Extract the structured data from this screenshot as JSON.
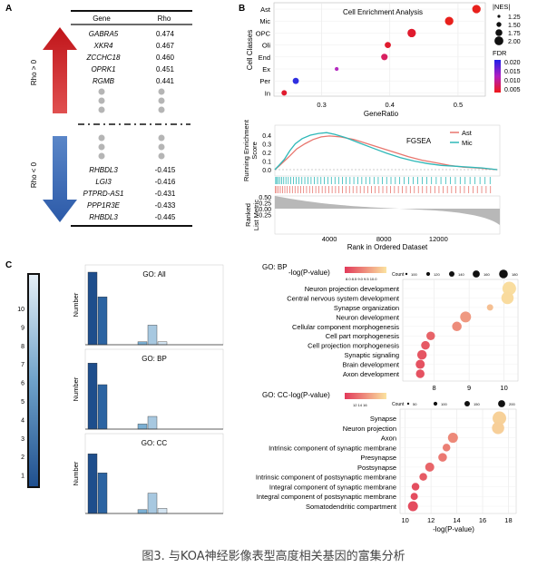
{
  "caption": "图3. 与KOA神经影像表型高度相关基因的富集分析",
  "panelA": {
    "label": "A",
    "headers": [
      "Gene",
      "Rho"
    ],
    "positive": [
      {
        "gene": "GABRA5",
        "rho": "0.474"
      },
      {
        "gene": "XKR4",
        "rho": "0.467"
      },
      {
        "gene": "ZCCHC18",
        "rho": "0.460"
      },
      {
        "gene": "OPRK1",
        "rho": "0.451"
      },
      {
        "gene": "RGMB",
        "rho": "0.441"
      }
    ],
    "negative": [
      {
        "gene": "RHBDL3",
        "rho": "-0.415"
      },
      {
        "gene": "LGI3",
        "rho": "-0.416"
      },
      {
        "gene": "PTPRD-AS1",
        "rho": "-0.431"
      },
      {
        "gene": "PPP1R3E",
        "rho": "-0.433"
      },
      {
        "gene": "RHBDL3",
        "rho": "-0.445"
      }
    ],
    "rho_pos_label": "Rho > 0",
    "rho_neg_label": "Rho < 0",
    "colors": {
      "up": "#d42a2a",
      "down": "#3a68b4"
    }
  },
  "panelB": {
    "label": "B",
    "dot": {
      "title": "Cell Enrichment Analysis",
      "ylabel": "Cell Classes",
      "xlabel": "GeneRatio",
      "xticks": [
        "0.3",
        "0.4",
        "0.5"
      ],
      "classes": [
        "Ast",
        "Mic",
        "OPC",
        "Oli",
        "End",
        "Ex",
        "Per",
        "In"
      ],
      "legend_nes_title": "|NES|",
      "legend_nes": [
        "1.25",
        "1.50",
        "1.75",
        "2.00"
      ],
      "legend_fdr_title": "FDR",
      "legend_fdr": [
        "0.020",
        "0.015",
        "0.010",
        "0.005"
      ]
    },
    "chart_data": {
      "type": "scatter",
      "title": "Cell Enrichment Analysis",
      "xlabel": "GeneRatio",
      "ylabel": "Cell Classes",
      "xlim": [
        0.23,
        0.54
      ],
      "points": [
        {
          "cls": "Ast",
          "x": 0.527,
          "nes": 1.85,
          "color": "#e8201c"
        },
        {
          "cls": "Mic",
          "x": 0.487,
          "nes": 1.85,
          "color": "#e8201c"
        },
        {
          "cls": "OPC",
          "x": 0.432,
          "nes": 1.85,
          "color": "#e01b2e"
        },
        {
          "cls": "Oli",
          "x": 0.397,
          "nes": 1.55,
          "color": "#e01b2e"
        },
        {
          "cls": "End",
          "x": 0.392,
          "nes": 1.6,
          "color": "#d82060"
        },
        {
          "cls": "Ex",
          "x": 0.322,
          "nes": 1.25,
          "color": "#b52bc0"
        },
        {
          "cls": "Per",
          "x": 0.262,
          "nes": 1.55,
          "color": "#2f2fe0"
        },
        {
          "cls": "In",
          "x": 0.245,
          "nes": 1.45,
          "color": "#e01b2e"
        }
      ]
    },
    "gsea": {
      "title": "FGSEA",
      "ylabel1": "Running Enrichment",
      "ylabel2": "Score",
      "yticks": [
        "0.4",
        "0.3",
        "0.2",
        "0.1",
        "0.0"
      ],
      "legend": [
        "Ast",
        "Mic"
      ],
      "colors": {
        "Ast": "#e8766e",
        "Mic": "#2eb8b8"
      },
      "metric_ylabel1": "Ranked",
      "metric_ylabel2": "List Metric",
      "metric_yticks": [
        "0.50",
        "0.25",
        "0.00",
        "-0.25"
      ],
      "xticks": [
        "4000",
        "8000",
        "12000"
      ],
      "xlabel": "Rank in Ordered Dataset"
    }
  },
  "panelC": {
    "label": "C",
    "colorbar_ticks": [
      "10",
      "9",
      "8",
      "7",
      "6",
      "5",
      "4",
      "3",
      "2",
      "1"
    ],
    "bars": [
      {
        "title": "GO: All",
        "ylabel": "Number",
        "values": [
          100,
          66,
          0,
          0,
          0,
          4,
          27,
          4
        ]
      },
      {
        "title": "GO: BP",
        "ylabel": "Number",
        "values": [
          52,
          35,
          0,
          0,
          0,
          4,
          10,
          0
        ]
      },
      {
        "title": "GO: CC",
        "ylabel": "Number",
        "values": [
          47,
          32,
          0,
          0,
          0,
          3,
          16,
          4
        ]
      }
    ],
    "bar_colors": [
      "#1e4e8c",
      "#2c64a2",
      "#3b7ab6",
      "#4b8cc0",
      "#5f9ec9",
      "#7aafd3",
      "#a7c8e0",
      "#d3e4f1"
    ],
    "bp": {
      "header": "GO: BP",
      "legend_title": "-log(P-value)",
      "legend_ticks": "8.0 8.5 9.0 9.5 10.0",
      "count_label": "Count",
      "count_ticks": [
        "100",
        "120",
        "140",
        "160",
        "180"
      ],
      "xticks": [
        "8",
        "9",
        "10"
      ],
      "terms": [
        {
          "term": "Neuron projection development",
          "x": 10.15,
          "size": 1.0
        },
        {
          "term": "Central nervous system development",
          "x": 10.1,
          "size": 0.85
        },
        {
          "term": "Synapse organization",
          "x": 9.6,
          "size": 0.2
        },
        {
          "term": "Neuron development",
          "x": 8.9,
          "size": 0.7
        },
        {
          "term": "Cellular component morphogenesis",
          "x": 8.65,
          "size": 0.55
        },
        {
          "term": "Cell part morphogenesis",
          "x": 7.9,
          "size": 0.45
        },
        {
          "term": "Cell projection morphogenesis",
          "x": 7.75,
          "size": 0.45
        },
        {
          "term": "Synaptic signaling",
          "x": 7.65,
          "size": 0.55
        },
        {
          "term": "Brain development",
          "x": 7.6,
          "size": 0.5
        },
        {
          "term": "Axon development",
          "x": 7.6,
          "size": 0.45
        }
      ]
    },
    "cc": {
      "header": "GO: CC",
      "legend_title": "-log(P-value)",
      "legend_ticks": "12 14 16",
      "count_label": "Count",
      "count_ticks": [
        "50",
        "100",
        "150",
        "200"
      ],
      "xticks": [
        "10",
        "12",
        "14",
        "16",
        "18"
      ],
      "xlabel": "-log(P-value)",
      "terms": [
        {
          "term": "Synapse",
          "x": 17.3,
          "size": 1.0
        },
        {
          "term": "Neuron projection",
          "x": 17.2,
          "size": 0.85
        },
        {
          "term": "Axon",
          "x": 13.7,
          "size": 0.6
        },
        {
          "term": "Intrinsic component of synaptic membrane",
          "x": 13.2,
          "size": 0.35
        },
        {
          "term": "Presynapse",
          "x": 12.9,
          "size": 0.45
        },
        {
          "term": "Postsynapse",
          "x": 11.9,
          "size": 0.5
        },
        {
          "term": "Intrinsic component of postsynaptic membrane",
          "x": 11.4,
          "size": 0.35
        },
        {
          "term": "Integral component of synaptic membrane",
          "x": 10.8,
          "size": 0.35
        },
        {
          "term": "Integral component of postsynaptic membrane",
          "x": 10.7,
          "size": 0.3
        },
        {
          "term": "Somatodendritic compartment",
          "x": 10.6,
          "size": 0.6
        }
      ]
    }
  }
}
